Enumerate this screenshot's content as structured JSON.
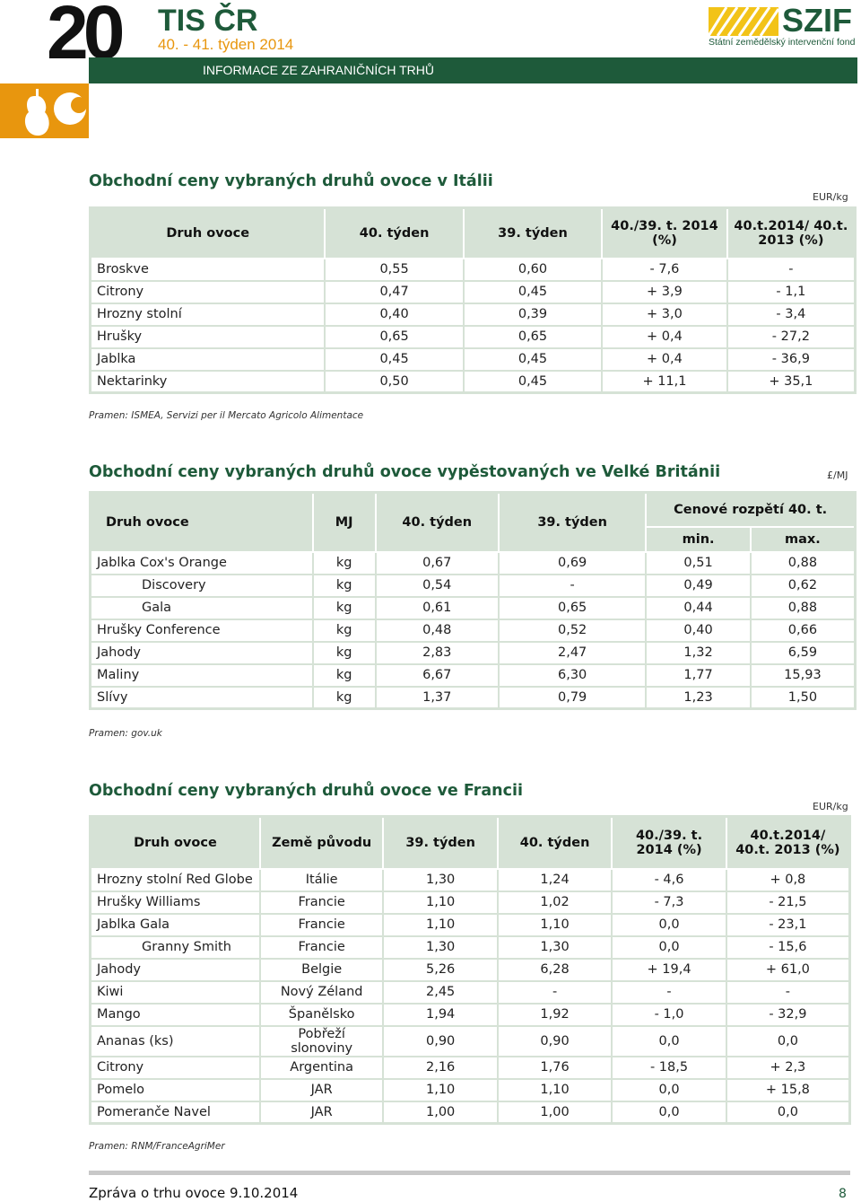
{
  "header": {
    "number": "20",
    "title": "TIS ČR",
    "week": "40. - 41. týden 2014",
    "band": "INFORMACE ZE ZAHRANIČNÍCH TRHŮ",
    "logo_name": "SZIF",
    "logo_sub": "Státní zemědělský intervenční fond",
    "colors": {
      "green": "#1e5a3a",
      "orange": "#e8960e"
    }
  },
  "italy": {
    "title": "Obchodní ceny vybraných druhů ovoce v Itálii",
    "unit": "EUR/kg",
    "headers": [
      "Druh ovoce",
      "40. týden",
      "39. týden",
      "40./39. t. 2014 (%)",
      "40.t.2014/ 40.t. 2013 (%)"
    ],
    "rows": [
      [
        "Broskve",
        "0,55",
        "0,60",
        "- 7,6",
        "-"
      ],
      [
        "Citrony",
        "0,47",
        "0,45",
        "+ 3,9",
        "- 1,1"
      ],
      [
        "Hrozny stolní",
        "0,40",
        "0,39",
        "+ 3,0",
        "- 3,4"
      ],
      [
        "Hrušky",
        "0,65",
        "0,65",
        "+ 0,4",
        "- 27,2"
      ],
      [
        "Jablka",
        "0,45",
        "0,45",
        "+ 0,4",
        "- 36,9"
      ],
      [
        "Nektarinky",
        "0,50",
        "0,45",
        "+ 11,1",
        "+ 35,1"
      ]
    ],
    "source": "Pramen: ISMEA, Servizi per il Mercato Agricolo Alimentace"
  },
  "uk": {
    "title": "Obchodní ceny vybraných druhů ovoce vypěstovaných ve Velké Británii",
    "unit": "£/MJ",
    "headers": [
      "Druh ovoce",
      "MJ",
      "40. týden",
      "39. týden",
      "Cenové rozpětí 40. t.",
      "min.",
      "max."
    ],
    "rows": [
      [
        "Jablka Cox's Orange",
        "kg",
        "0,67",
        "0,69",
        "0,51",
        "0,88"
      ],
      [
        "Discovery",
        "kg",
        "0,54",
        "-",
        "0,49",
        "0,62"
      ],
      [
        "Gala",
        "kg",
        "0,61",
        "0,65",
        "0,44",
        "0,88"
      ],
      [
        "Hrušky Conference",
        "kg",
        "0,48",
        "0,52",
        "0,40",
        "0,66"
      ],
      [
        "Jahody",
        "kg",
        "2,83",
        "2,47",
        "1,32",
        "6,59"
      ],
      [
        "Maliny",
        "kg",
        "6,67",
        "6,30",
        "1,77",
        "15,93"
      ],
      [
        "Slívy",
        "kg",
        "1,37",
        "0,79",
        "1,23",
        "1,50"
      ]
    ],
    "source": "Pramen: gov.uk"
  },
  "france": {
    "title": "Obchodní ceny vybraných druhů ovoce ve Francii",
    "unit": "EUR/kg",
    "headers": [
      "Druh ovoce",
      "Země původu",
      "39. týden",
      "40. týden",
      "40./39. t. 2014 (%)",
      "40.t.2014/ 40.t. 2013 (%)"
    ],
    "rows": [
      [
        "Hrozny stolní Red Globe",
        "Itálie",
        "1,30",
        "1,24",
        "- 4,6",
        "+ 0,8"
      ],
      [
        "Hrušky Williams",
        "Francie",
        "1,10",
        "1,02",
        "- 7,3",
        "- 21,5"
      ],
      [
        "Jablka Gala",
        "Francie",
        "1,10",
        "1,10",
        "0,0",
        "- 23,1"
      ],
      [
        "Granny Smith",
        "Francie",
        "1,30",
        "1,30",
        "0,0",
        "- 15,6"
      ],
      [
        "Jahody",
        "Belgie",
        "5,26",
        "6,28",
        "+ 19,4",
        "+ 61,0"
      ],
      [
        "Kiwi",
        "Nový Zéland",
        "2,45",
        "-",
        "-",
        "-"
      ],
      [
        "Mango",
        "Španělsko",
        "1,94",
        "1,92",
        "- 1,0",
        "- 32,9"
      ],
      [
        "Ananas (ks)",
        "Pobřeží slonoviny",
        "0,90",
        "0,90",
        "0,0",
        "0,0"
      ],
      [
        "Citrony",
        "Argentina",
        "2,16",
        "1,76",
        "- 18,5",
        "+ 2,3"
      ],
      [
        "Pomelo",
        "JAR",
        "1,10",
        "1,10",
        "0,0",
        "+ 15,8"
      ],
      [
        "Pomeranče Navel",
        "JAR",
        "1,00",
        "1,00",
        "0,0",
        "0,0"
      ]
    ],
    "source": "Pramen: RNM/FranceAgriMer"
  },
  "footer": {
    "text": "Zpráva o trhu ovoce 9.10.2014",
    "page": "8"
  }
}
